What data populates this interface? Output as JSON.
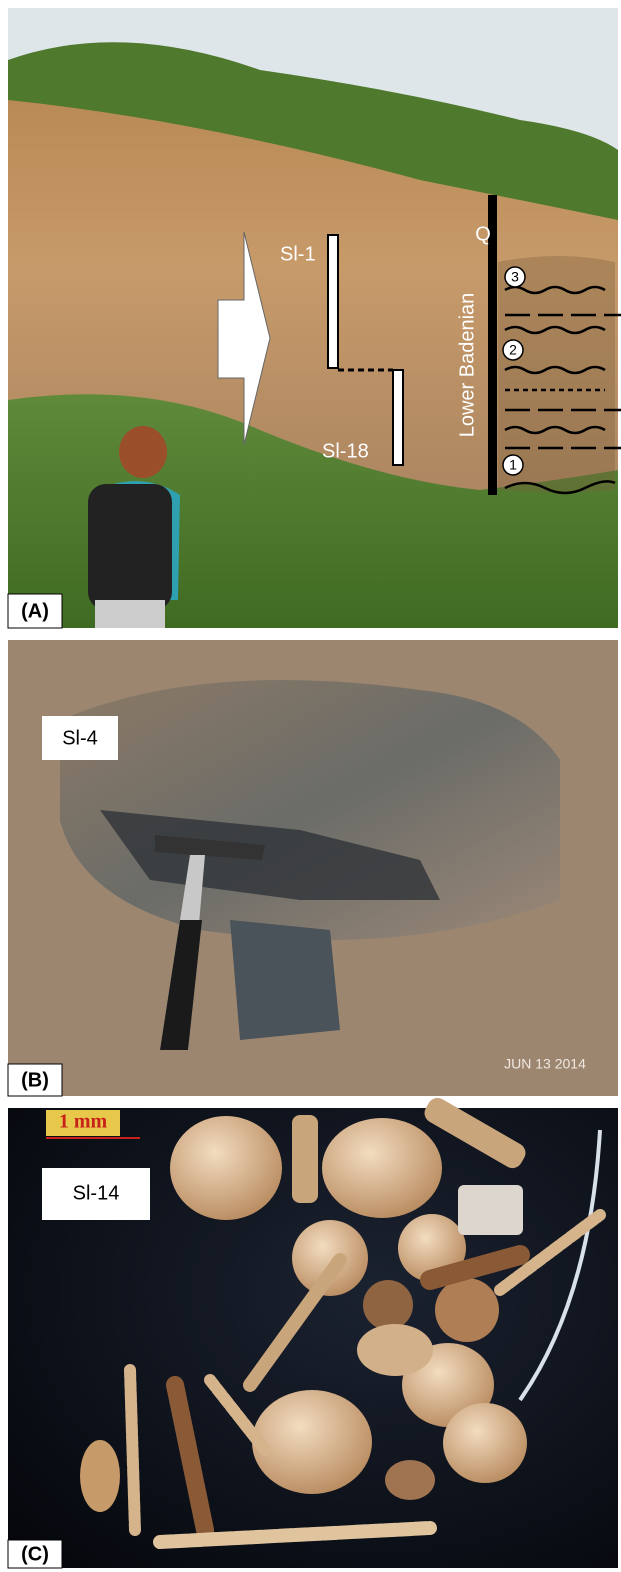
{
  "panel_a": {
    "label": "(A)",
    "sample_top": "Sl-1",
    "sample_bottom": "Sl-18",
    "unit_top": "Q",
    "unit_main": "Lower Badenian",
    "layers": [
      "3",
      "2",
      "1"
    ]
  },
  "panel_b": {
    "label": "(B)",
    "sample": "Sl-4",
    "date_stamp": "JUN 13 2014"
  },
  "panel_c": {
    "label": "(C)",
    "scale": "1 mm",
    "sample": "Sl-14"
  }
}
